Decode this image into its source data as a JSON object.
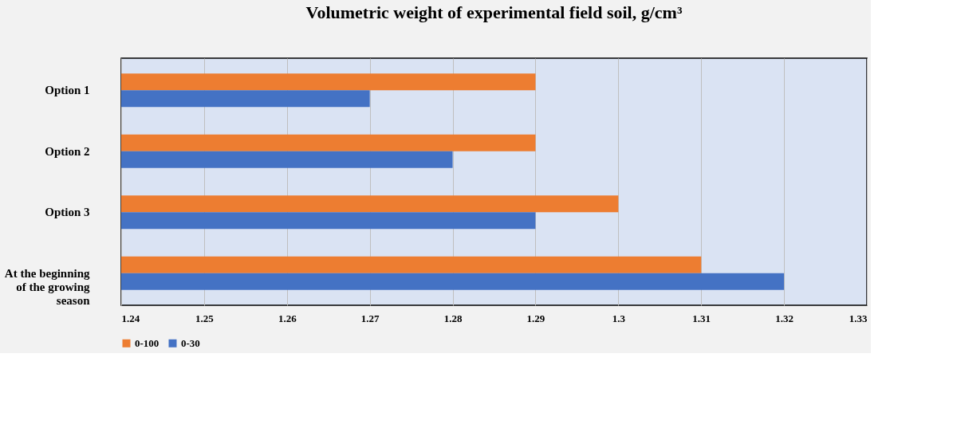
{
  "chart_data": {
    "type": "bar",
    "orientation": "horizontal",
    "title": "Volumetric weight of experimental field soil, g/cm³",
    "categories": [
      "Option 1",
      "Option 2",
      "Option 3",
      "At the beginning of the growing season"
    ],
    "series": [
      {
        "name": "0-100",
        "color": "#ed7d31",
        "values": [
          1.29,
          1.29,
          1.3,
          1.31
        ]
      },
      {
        "name": "0-30",
        "color": "#4472c4",
        "values": [
          1.27,
          1.28,
          1.29,
          1.32
        ]
      }
    ],
    "xlim": [
      1.24,
      1.33
    ],
    "xticks": [
      1.24,
      1.25,
      1.26,
      1.27,
      1.28,
      1.29,
      1.3,
      1.31,
      1.32,
      1.33
    ],
    "grid": "x",
    "legend": "bottom"
  }
}
